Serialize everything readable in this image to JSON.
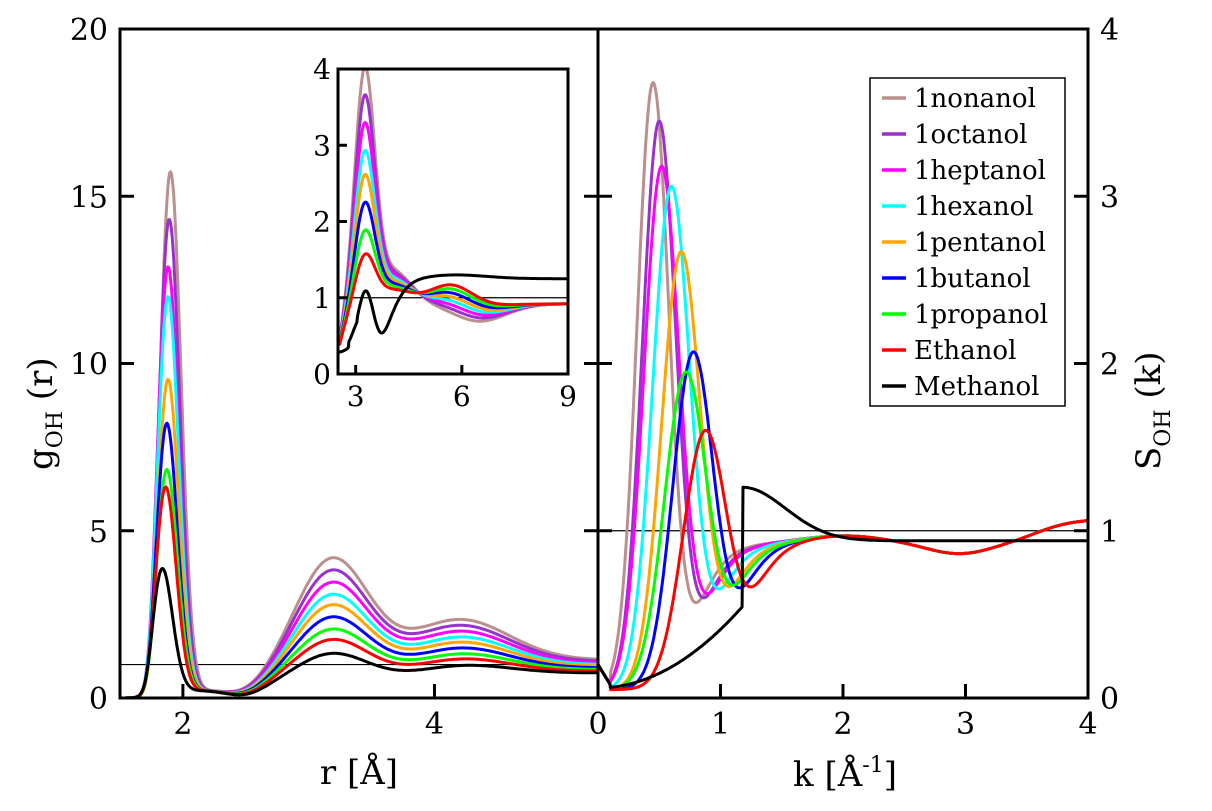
{
  "chart_data": [
    {
      "id": "left",
      "type": "line",
      "xlabel": "r [Å]",
      "ylabel_main": "g",
      "ylabel_sub": "OH",
      "ylabel_tail": " (r)",
      "xlim": [
        1.5,
        5.3
      ],
      "ylim": [
        0,
        20
      ],
      "xticks": [
        2,
        4
      ],
      "yticks": [
        0,
        5,
        10,
        15,
        20
      ],
      "reference_line": 1,
      "peaks": {
        "first_peak_r": [
          1.9,
          1.89,
          1.88,
          1.88,
          1.88,
          1.87,
          1.87,
          1.86,
          1.83
        ],
        "first_peak_g": [
          15.6,
          14.2,
          12.8,
          11.9,
          9.4,
          8.1,
          6.7,
          6.2,
          3.8
        ],
        "second_peak_g": [
          3.8,
          3.45,
          3.1,
          2.75,
          2.45,
          2.1,
          1.75,
          1.45,
          1.05
        ]
      }
    },
    {
      "id": "inset",
      "type": "line",
      "xlim": [
        2.5,
        9
      ],
      "ylim": [
        0,
        4
      ],
      "xticks": [
        3,
        6,
        9
      ],
      "yticks": [
        0,
        1,
        2,
        3,
        4
      ],
      "reference_line": 1
    },
    {
      "id": "right",
      "type": "line",
      "xlabel": "k [Å",
      "xlabel_sup": "-1",
      "xlabel_tail": "]",
      "ylabel_main": "S",
      "ylabel_sub": "OH",
      "ylabel_tail": " (k)",
      "xlim": [
        0,
        4
      ],
      "ylim": [
        0,
        4
      ],
      "xticks": [
        0,
        1,
        2,
        3,
        4
      ],
      "yticks": [
        0,
        1,
        2,
        3,
        4
      ],
      "reference_line": 1,
      "peaks": {
        "peak_k": [
          0.45,
          0.5,
          0.52,
          0.6,
          0.68,
          0.78,
          0.72,
          0.88,
          1.18
        ],
        "peak_S": [
          3.68,
          3.45,
          3.18,
          3.06,
          2.67,
          2.07,
          1.95,
          1.6,
          1.24
        ]
      }
    }
  ],
  "series": [
    {
      "name": "1nonanol",
      "color": "#bc8f8f"
    },
    {
      "name": "1octanol",
      "color": "#9932cc"
    },
    {
      "name": "1heptanol",
      "color": "#ff00ff"
    },
    {
      "name": "1hexanol",
      "color": "#00ffff"
    },
    {
      "name": "1pentanol",
      "color": "#ffa500"
    },
    {
      "name": "1butanol",
      "color": "#0000ff"
    },
    {
      "name": "1propanol",
      "color": "#00ff00"
    },
    {
      "name": "Ethanol",
      "color": "#ff0000"
    },
    {
      "name": "Methanol",
      "color": "#000000"
    }
  ]
}
